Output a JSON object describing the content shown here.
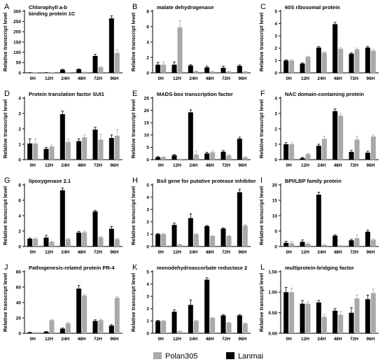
{
  "colors": {
    "Polan305": "#a9a9a9",
    "Lanmai": "#000000"
  },
  "legend": [
    {
      "name": "Polan305",
      "color": "#a9a9a9"
    },
    {
      "name": "Lanmai",
      "color": "#000000"
    }
  ],
  "chart_data": [
    {
      "letter": "A",
      "type": "bar",
      "title": "Chlorophyll a-b\nbinding protein 1C",
      "ylabel": "Relative transcript level",
      "categories": [
        "0H",
        "12H",
        "24H",
        "48H",
        "72H",
        "96H"
      ],
      "ylim": [
        0,
        300
      ],
      "yticks": [
        0,
        50,
        100,
        150,
        200,
        250,
        300
      ],
      "series": [
        {
          "name": "Lanmai",
          "values": [
            1,
            1,
            15,
            17,
            82,
            265
          ],
          "errors": [
            0.3,
            0.3,
            2,
            2,
            8,
            12
          ]
        },
        {
          "name": "Polan305",
          "values": [
            1,
            1,
            1,
            3,
            27,
            97
          ],
          "errors": [
            0.3,
            0.3,
            0.5,
            1,
            3,
            15
          ]
        }
      ]
    },
    {
      "letter": "B",
      "type": "bar",
      "title": "malate dehydrogenase",
      "ylabel": "Relative transcript level",
      "categories": [
        "0H",
        "12H",
        "24H",
        "48H",
        "72H",
        "96H"
      ],
      "ylim": [
        0,
        8
      ],
      "yticks": [
        0,
        2,
        4,
        6,
        8
      ],
      "series": [
        {
          "name": "Lanmai",
          "values": [
            1.05,
            1.05,
            0.95,
            0.7,
            0.65,
            0.9
          ],
          "errors": [
            0.3,
            0.35,
            0.1,
            0.15,
            0.2,
            0.12
          ]
        },
        {
          "name": "Polan305",
          "values": [
            1.05,
            5.9,
            0.2,
            0.15,
            0.15,
            0.15
          ],
          "errors": [
            0.35,
            0.9,
            0.05,
            0.05,
            0.05,
            0.05
          ]
        }
      ]
    },
    {
      "letter": "C",
      "type": "bar",
      "title": "60S ribosomal protein",
      "ylabel": "Relative transcript level",
      "categories": [
        "0H",
        "12H",
        "24H",
        "48H",
        "72H",
        "96H"
      ],
      "ylim": [
        0,
        5
      ],
      "yticks": [
        0,
        1,
        2,
        3,
        4,
        5
      ],
      "series": [
        {
          "name": "Lanmai",
          "values": [
            1.0,
            0.75,
            2.05,
            3.95,
            1.55,
            2.05
          ],
          "errors": [
            0.05,
            0.05,
            0.08,
            0.15,
            0.08,
            0.1
          ]
        },
        {
          "name": "Polan305",
          "values": [
            1.0,
            1.3,
            1.65,
            1.95,
            1.9,
            1.8
          ],
          "errors": [
            0.05,
            0.05,
            0.08,
            0.1,
            0.1,
            0.1
          ]
        }
      ]
    },
    {
      "letter": "D",
      "type": "bar",
      "title": "Protein translation factor SUI1",
      "ylabel": "Relative transcript level",
      "categories": [
        "0H",
        "12H",
        "24H",
        "48H",
        "72H",
        "96H"
      ],
      "ylim": [
        0,
        4
      ],
      "yticks": [
        0,
        1,
        2,
        3,
        4
      ],
      "series": [
        {
          "name": "Lanmai",
          "values": [
            1.05,
            0.7,
            2.95,
            1.2,
            1.95,
            1.4
          ],
          "errors": [
            0.3,
            0.1,
            0.2,
            0.15,
            0.15,
            0.2
          ]
        },
        {
          "name": "Polan305",
          "values": [
            1.05,
            0.85,
            1.15,
            1.45,
            1.3,
            1.55
          ],
          "errors": [
            0.3,
            0.1,
            0.2,
            0.15,
            0.35,
            0.4
          ]
        }
      ]
    },
    {
      "letter": "E",
      "type": "bar",
      "title": "MADS-box transcription factor",
      "ylabel": "Relative transcript level",
      "categories": [
        "0H",
        "12H",
        "24H",
        "48H",
        "72H",
        "96H"
      ],
      "ylim": [
        0,
        25
      ],
      "yticks": [
        0,
        5,
        10,
        15,
        20,
        25
      ],
      "series": [
        {
          "name": "Lanmai",
          "values": [
            1.0,
            1.8,
            19.2,
            2.5,
            3.2,
            8.5
          ],
          "errors": [
            0.2,
            0.3,
            1.0,
            0.5,
            0.5,
            0.6
          ]
        },
        {
          "name": "Polan305",
          "values": [
            1.0,
            0.2,
            2.1,
            3.0,
            1.7,
            1.0
          ],
          "errors": [
            0.2,
            0.1,
            1.5,
            0.6,
            0.4,
            0.2
          ]
        }
      ]
    },
    {
      "letter": "F",
      "type": "bar",
      "title": "NAC domain-containing protein",
      "ylabel": "Relative transcript level",
      "categories": [
        "0H",
        "12H",
        "24H",
        "48H",
        "72H",
        "96H"
      ],
      "ylim": [
        0,
        4
      ],
      "yticks": [
        0,
        1,
        2,
        3,
        4
      ],
      "series": [
        {
          "name": "Lanmai",
          "values": [
            1.0,
            0.1,
            0.9,
            3.15,
            0.5,
            0.45
          ],
          "errors": [
            0.1,
            0.05,
            0.1,
            0.15,
            0.1,
            0.1
          ]
        },
        {
          "name": "Polan305",
          "values": [
            1.0,
            0.35,
            1.35,
            2.85,
            1.3,
            1.5
          ],
          "errors": [
            0.1,
            0.05,
            0.15,
            0.15,
            0.2,
            0.1
          ]
        }
      ]
    },
    {
      "letter": "G",
      "type": "bar",
      "title": "lipoxygenase 2.1",
      "ylabel": "Relative transcript level",
      "categories": [
        "0H",
        "12H",
        "24H",
        "48H",
        "72H",
        "96H"
      ],
      "ylim": [
        0,
        8
      ],
      "yticks": [
        0,
        2,
        4,
        6,
        8
      ],
      "series": [
        {
          "name": "Lanmai",
          "values": [
            1.0,
            1.15,
            7.3,
            1.8,
            4.55,
            2.3
          ],
          "errors": [
            0.1,
            0.3,
            0.3,
            0.15,
            0.15,
            0.3
          ]
        },
        {
          "name": "Polan305",
          "values": [
            1.0,
            0.6,
            0.95,
            1.85,
            1.2,
            0.95
          ],
          "errors": [
            0.1,
            0.05,
            0.1,
            0.15,
            0.1,
            0.1
          ]
        }
      ]
    },
    {
      "letter": "H",
      "type": "bar",
      "title": "Bsil gene for putative protease inhibitor",
      "ylabel": "Relative transcript level",
      "categories": [
        "0H",
        "12H",
        "24H",
        "48H",
        "72H",
        "96H"
      ],
      "ylim": [
        0,
        5
      ],
      "yticks": [
        0,
        1,
        2,
        3,
        4,
        5
      ],
      "series": [
        {
          "name": "Lanmai",
          "values": [
            1.0,
            1.75,
            2.3,
            1.65,
            1.45,
            4.4
          ],
          "errors": [
            0.05,
            0.15,
            0.35,
            0.05,
            0.05,
            0.25
          ]
        },
        {
          "name": "Polan305",
          "values": [
            1.0,
            0.15,
            1.0,
            0.85,
            0.85,
            1.7
          ],
          "errors": [
            0.05,
            0.03,
            0.05,
            0.05,
            0.05,
            0.1
          ]
        }
      ]
    },
    {
      "letter": "I",
      "type": "bar",
      "title": "BPI/LBP family protein",
      "ylabel": "Relative transcript level",
      "categories": [
        "0H",
        "12H",
        "24H",
        "48H",
        "72H",
        "96H"
      ],
      "ylim": [
        0,
        20
      ],
      "yticks": [
        0,
        5,
        10,
        15,
        20
      ],
      "series": [
        {
          "name": "Lanmai",
          "values": [
            1.2,
            1.5,
            16.8,
            3.5,
            2.0,
            4.8
          ],
          "errors": [
            0.5,
            0.6,
            0.8,
            0.3,
            0.3,
            0.5
          ]
        },
        {
          "name": "Polan305",
          "values": [
            1.0,
            0.9,
            0.5,
            0.2,
            2.7,
            2.2
          ],
          "errors": [
            0.5,
            0.4,
            0.2,
            0.1,
            1.0,
            0.3
          ]
        }
      ]
    },
    {
      "letter": "J",
      "type": "bar",
      "title": "Pathogenesis-related protein PR-4",
      "ylabel": "Relative transcript level",
      "categories": [
        "0H",
        "12H",
        "24H",
        "48H",
        "72H",
        "96H"
      ],
      "ylim": [
        0,
        80
      ],
      "yticks": [
        0,
        20,
        40,
        60,
        80
      ],
      "series": [
        {
          "name": "Lanmai",
          "values": [
            1,
            2,
            6,
            58,
            16,
            10
          ],
          "errors": [
            0.5,
            0.5,
            1,
            4,
            1.5,
            1.5
          ]
        },
        {
          "name": "Polan305",
          "values": [
            1,
            17,
            13,
            49,
            17,
            46
          ],
          "errors": [
            0.5,
            1,
            1.5,
            1.5,
            1.5,
            1.5
          ]
        }
      ]
    },
    {
      "letter": "K",
      "type": "bar",
      "title": "monodehydroascorbate reductase 2",
      "ylabel": "Relative transcript level",
      "categories": [
        "0H",
        "12H",
        "24H",
        "48H",
        "72H",
        "96H"
      ],
      "ylim": [
        0,
        5
      ],
      "yticks": [
        0,
        1,
        2,
        3,
        4,
        5
      ],
      "series": [
        {
          "name": "Lanmai",
          "values": [
            1.0,
            1.75,
            2.3,
            4.35,
            1.45,
            1.45
          ],
          "errors": [
            0.05,
            0.15,
            0.4,
            0.15,
            0.05,
            0.05
          ]
        },
        {
          "name": "Polan305",
          "values": [
            1.0,
            0.15,
            1.0,
            1.25,
            0.85,
            0.8
          ],
          "errors": [
            0.05,
            0.03,
            0.05,
            0.05,
            0.05,
            0.05
          ]
        }
      ]
    },
    {
      "letter": "L",
      "type": "bar",
      "title": "multiprotein-bridging factor",
      "ylabel": "Relative transcript level",
      "categories": [
        "0H",
        "12H",
        "24H",
        "48H",
        "72H",
        "96H"
      ],
      "ylim": [
        0,
        1.5
      ],
      "yticks": [
        0.0,
        0.5,
        1.0,
        1.5
      ],
      "series": [
        {
          "name": "Lanmai",
          "values": [
            1.0,
            0.72,
            0.75,
            0.55,
            0.5,
            0.83
          ],
          "errors": [
            0.12,
            0.08,
            0.05,
            0.05,
            0.12,
            0.1
          ]
        },
        {
          "name": "Polan305",
          "values": [
            1.0,
            0.72,
            0.4,
            0.45,
            0.85,
            0.98
          ],
          "errors": [
            0.1,
            0.05,
            0.05,
            0.08,
            0.08,
            0.1
          ]
        }
      ]
    }
  ]
}
